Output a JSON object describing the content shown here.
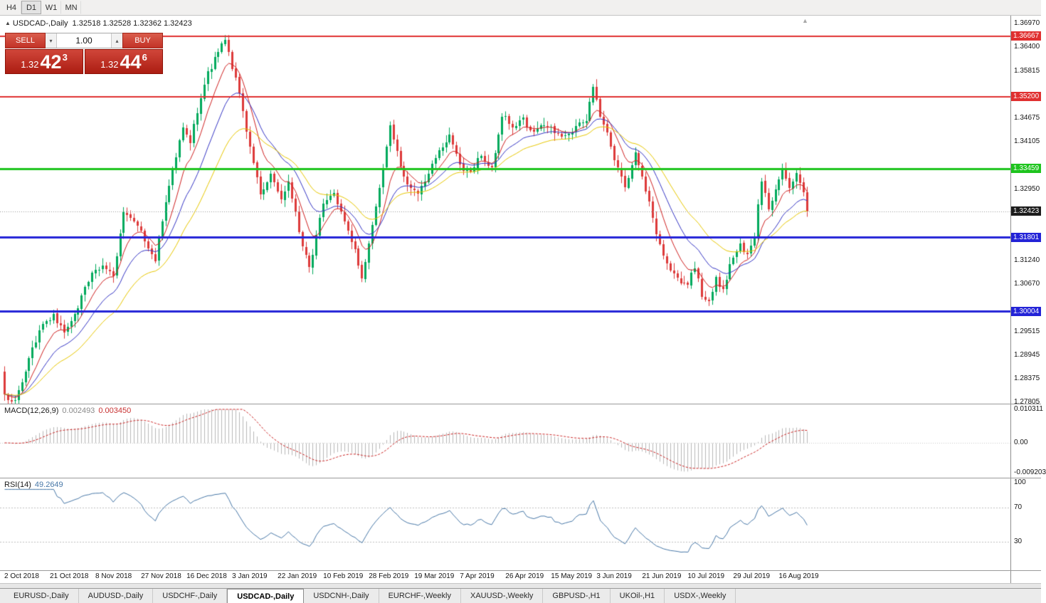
{
  "toolbar": {
    "timeframes": [
      "H4",
      "D1",
      "W1",
      "MN"
    ],
    "active": "D1"
  },
  "icons": {
    "collapse_marker": "▲",
    "shift_marker": "▲",
    "stepper_up": "▴",
    "stepper_down": "▾"
  },
  "chart_header": {
    "symbol": "USDCAD-,Daily",
    "ohlc": "1.32518 1.32528 1.32362 1.32423"
  },
  "trade_panel": {
    "sell_label": "SELL",
    "buy_label": "BUY",
    "lot": "1.00",
    "sell_price": {
      "prefix": "1.32",
      "big": "42",
      "sup": "3"
    },
    "buy_price": {
      "prefix": "1.32",
      "big": "44",
      "sup": "6"
    }
  },
  "tabs": {
    "items": [
      "EURUSD-,Daily",
      "AUDUSD-,Daily",
      "USDCHF-,Daily",
      "USDCAD-,Daily",
      "USDCNH-,Daily",
      "EURCHF-,Weekly",
      "XAUUSD-,Weekly",
      "GBPUSD-,H1",
      "UKOil-,H1",
      "USDX-,Weekly"
    ],
    "active_index": 3
  },
  "chart_data": {
    "type": "candlestick",
    "symbol": "USDCAD",
    "period": "Daily",
    "candle_count": 230,
    "last_close": 1.32423,
    "current_bar": {
      "open": 1.32518,
      "high": 1.32528,
      "low": 1.32362,
      "close": 1.32423
    },
    "y_axis": {
      "min": 1.27805,
      "max": 1.3697
    },
    "price_ticks": [
      "1.36970",
      "1.36400",
      "1.35815",
      "1.34675",
      "1.34105",
      "1.32950",
      "1.31240",
      "1.30670",
      "1.29515",
      "1.28945",
      "1.28375",
      "1.27805"
    ],
    "candle_colors": {
      "up": "#00a95c",
      "down": "#dd3a3a"
    },
    "moving_averages": [
      {
        "period": 8,
        "color": "#d02020"
      },
      {
        "period": 17,
        "color": "#3535c5"
      },
      {
        "period": 30,
        "color": "#e8c800"
      }
    ],
    "horizontal_levels": [
      {
        "price": 1.36667,
        "color": "#e03030",
        "width": 2
      },
      {
        "price": 1.352,
        "color": "#e03030",
        "width": 2
      },
      {
        "price": 1.33459,
        "color": "#1ec41e",
        "width": 3
      },
      {
        "price": 1.31801,
        "color": "#2323d7",
        "width": 3
      },
      {
        "price": 1.30004,
        "color": "#2323d7",
        "width": 3
      }
    ],
    "price_anchors": [
      [
        0,
        1.2795
      ],
      [
        3,
        1.2782
      ],
      [
        6,
        1.286
      ],
      [
        10,
        1.2955
      ],
      [
        14,
        1.2988
      ],
      [
        17,
        1.2946
      ],
      [
        20,
        1.2992
      ],
      [
        24,
        1.3078
      ],
      [
        28,
        1.3112
      ],
      [
        31,
        1.3088
      ],
      [
        34,
        1.3242
      ],
      [
        38,
        1.3212
      ],
      [
        41,
        1.3152
      ],
      [
        43,
        1.3128
      ],
      [
        47,
        1.3302
      ],
      [
        51,
        1.3452
      ],
      [
        53,
        1.3412
      ],
      [
        57,
        1.3556
      ],
      [
        61,
        1.3632
      ],
      [
        63,
        1.3656
      ],
      [
        66,
        1.3562
      ],
      [
        68,
        1.3482
      ],
      [
        70,
        1.3392
      ],
      [
        73,
        1.3282
      ],
      [
        76,
        1.3332
      ],
      [
        79,
        1.3272
      ],
      [
        81,
        1.3312
      ],
      [
        85,
        1.3158
      ],
      [
        87,
        1.3102
      ],
      [
        91,
        1.3262
      ],
      [
        94,
        1.3282
      ],
      [
        97,
        1.3222
      ],
      [
        100,
        1.3152
      ],
      [
        102,
        1.3082
      ],
      [
        104,
        1.3162
      ],
      [
        107,
        1.3302
      ],
      [
        110,
        1.3448
      ],
      [
        112,
        1.3382
      ],
      [
        115,
        1.3302
      ],
      [
        118,
        1.3287
      ],
      [
        121,
        1.3332
      ],
      [
        124,
        1.3392
      ],
      [
        127,
        1.3422
      ],
      [
        130,
        1.3352
      ],
      [
        133,
        1.3332
      ],
      [
        136,
        1.3382
      ],
      [
        139,
        1.3342
      ],
      [
        142,
        1.3478
      ],
      [
        145,
        1.3442
      ],
      [
        148,
        1.3462
      ],
      [
        151,
        1.3432
      ],
      [
        154,
        1.3458
      ],
      [
        157,
        1.3438
      ],
      [
        160,
        1.3422
      ],
      [
        163,
        1.3448
      ],
      [
        166,
        1.3462
      ],
      [
        168,
        1.3542
      ],
      [
        170,
        1.3478
      ],
      [
        172,
        1.3432
      ],
      [
        175,
        1.3342
      ],
      [
        177,
        1.3302
      ],
      [
        180,
        1.3378
      ],
      [
        183,
        1.3298
      ],
      [
        186,
        1.3182
      ],
      [
        189,
        1.3112
      ],
      [
        192,
        1.3078
      ],
      [
        195,
        1.3062
      ],
      [
        197,
        1.3112
      ],
      [
        199,
        1.3042
      ],
      [
        201,
        1.3022
      ],
      [
        203,
        1.3082
      ],
      [
        205,
        1.3048
      ],
      [
        207,
        1.3112
      ],
      [
        210,
        1.3162
      ],
      [
        212,
        1.3138
      ],
      [
        214,
        1.3182
      ],
      [
        216,
        1.3322
      ],
      [
        218,
        1.3242
      ],
      [
        220,
        1.3288
      ],
      [
        222,
        1.3342
      ],
      [
        224,
        1.3302
      ],
      [
        226,
        1.3338
      ],
      [
        228,
        1.3292
      ],
      [
        229,
        1.32423
      ]
    ],
    "date_ticks": [
      {
        "label": "2 Oct 2018",
        "index": 0
      },
      {
        "label": "21 Oct 2018",
        "index": 13
      },
      {
        "label": "8 Nov 2018",
        "index": 26
      },
      {
        "label": "27 Nov 2018",
        "index": 39
      },
      {
        "label": "16 Dec 2018",
        "index": 52
      },
      {
        "label": "3 Jan 2019",
        "index": 65
      },
      {
        "label": "22 Jan 2019",
        "index": 78
      },
      {
        "label": "10 Feb 2019",
        "index": 91
      },
      {
        "label": "28 Feb 2019",
        "index": 104
      },
      {
        "label": "19 Mar 2019",
        "index": 117
      },
      {
        "label": "7 Apr 2019",
        "index": 130
      },
      {
        "label": "26 Apr 2019",
        "index": 143
      },
      {
        "label": "15 May 2019",
        "index": 156
      },
      {
        "label": "3 Jun 2019",
        "index": 169
      },
      {
        "label": "21 Jun 2019",
        "index": 182
      },
      {
        "label": "10 Jul 2019",
        "index": 195
      },
      {
        "label": "29 Jul 2019",
        "index": 208
      },
      {
        "label": "16 Aug 2019",
        "index": 221
      }
    ],
    "indicators": {
      "macd": {
        "label": "MACD(12,26,9)",
        "fast": 12,
        "slow": 26,
        "signal": 9,
        "value_main": "0.002493",
        "value_signal": "0.003450",
        "axis_min": -0.009203,
        "axis_max": 0.010311,
        "axis_labels": [
          {
            "label": "0.010311",
            "value": 0.010311
          },
          {
            "label": "0.00",
            "value": 0
          },
          {
            "label": "-0.009203",
            "value": -0.009203
          }
        ],
        "histogram_color": "#b8b8b8",
        "signal_color": "#cc2222"
      },
      "rsi": {
        "label": "RSI(14)",
        "period": 14,
        "value": "49.2649",
        "line_color": "#4878a8",
        "levels": [
          70,
          30
        ],
        "axis_labels": [
          {
            "label": "100",
            "value": 100
          },
          {
            "label": "70",
            "value": 70
          },
          {
            "label": "30",
            "value": 30
          }
        ]
      }
    }
  }
}
